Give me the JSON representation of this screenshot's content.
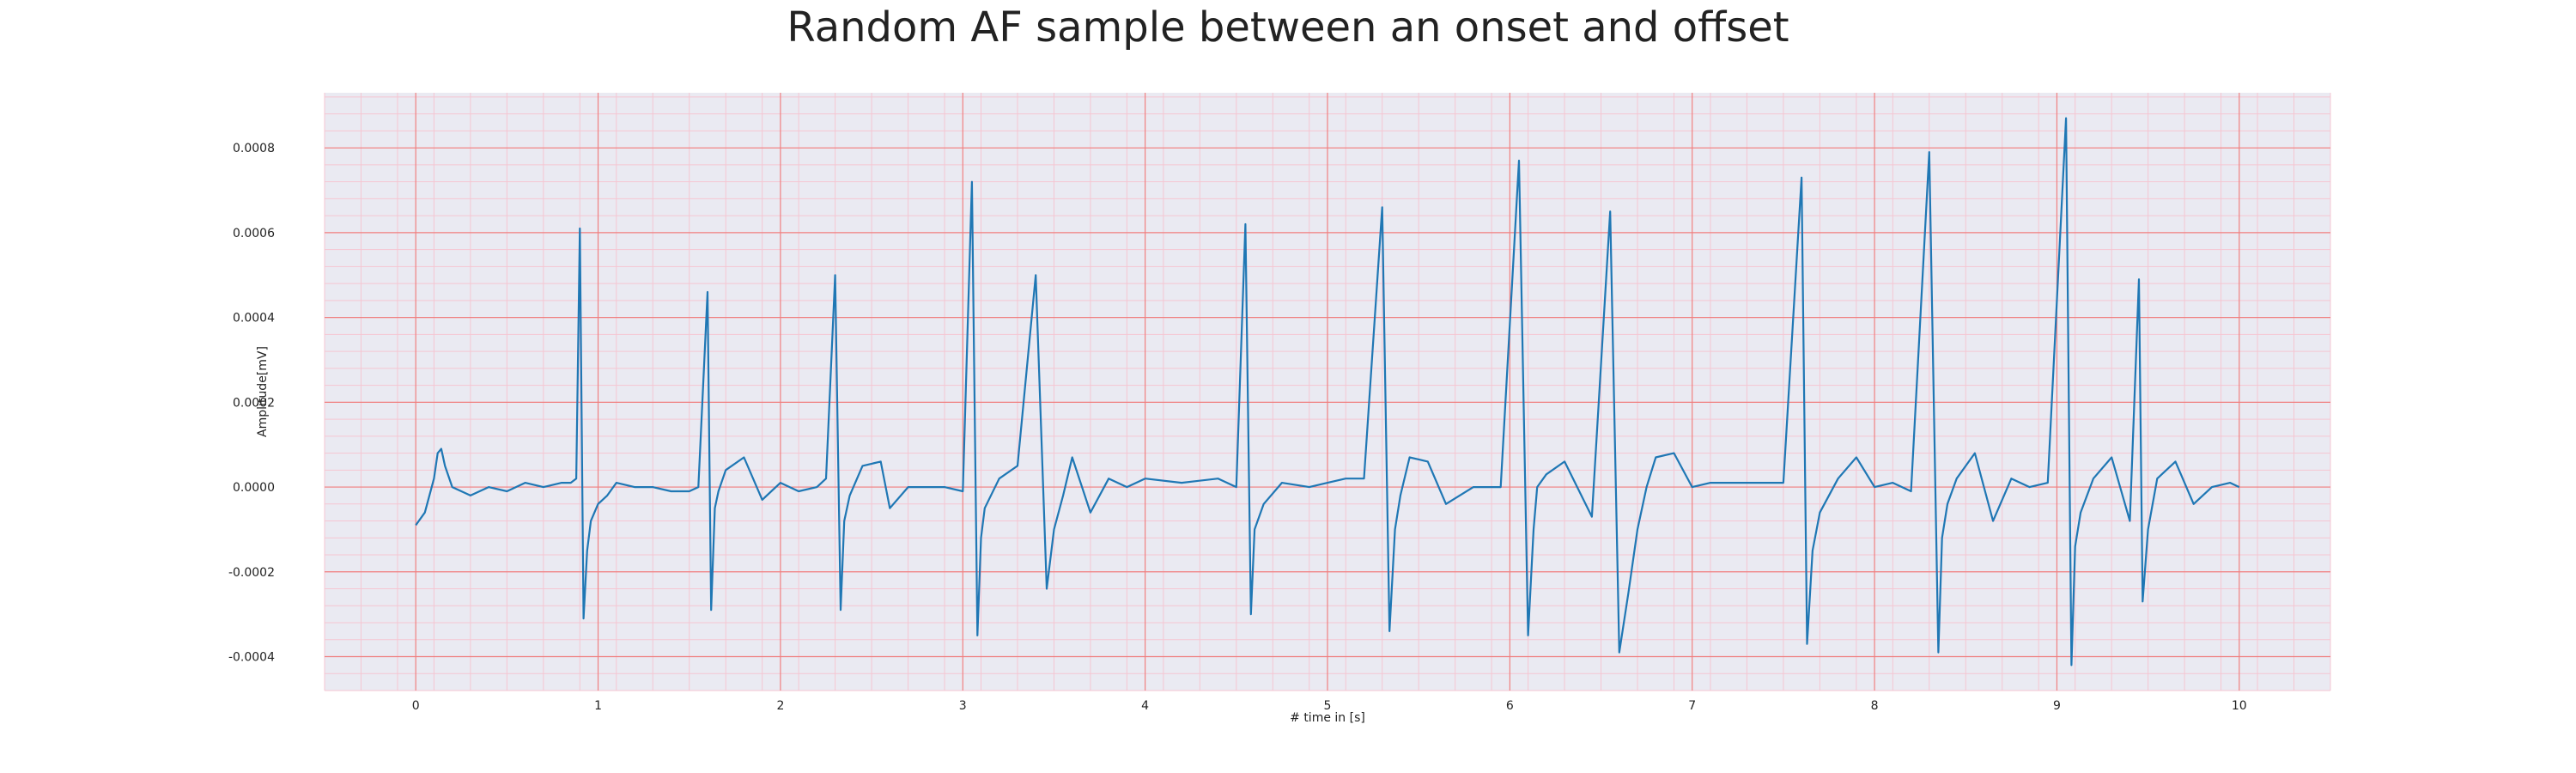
{
  "chart_data": {
    "type": "line",
    "title": "Random AF sample between an onset and offset",
    "xlabel": "# time in [s]",
    "ylabel": "Amplitude[mV]",
    "xlim": [
      -0.5,
      10.5
    ],
    "ylim": [
      -0.00048,
      0.00093
    ],
    "x_ticks": [
      0,
      1,
      2,
      3,
      4,
      5,
      6,
      7,
      8,
      9,
      10
    ],
    "x_tick_labels": [
      "0",
      "1",
      "2",
      "3",
      "4",
      "5",
      "6",
      "7",
      "8",
      "9",
      "10"
    ],
    "y_ticks": [
      -0.0004,
      -0.0002,
      0.0,
      0.0002,
      0.0004,
      0.0006,
      0.0008
    ],
    "y_tick_labels": [
      "-0.0004",
      "-0.0002",
      "0.0000",
      "0.0002",
      "0.0004",
      "0.0006",
      "0.0008"
    ],
    "grid": true,
    "minor_grid": true,
    "colors": {
      "background": "#eaeaf2",
      "major_grid": "#f08080",
      "minor_grid": "#f5c6d2",
      "line": "#1f77b4"
    },
    "series": [
      {
        "values_description_free": true,
        "x": [
          0.0,
          0.05,
          0.1,
          0.12,
          0.14,
          0.16,
          0.2,
          0.25,
          0.3,
          0.4,
          0.5,
          0.6,
          0.7,
          0.8,
          0.85,
          0.88,
          0.9,
          0.92,
          0.94,
          0.96,
          1.0,
          1.05,
          1.1,
          1.2,
          1.3,
          1.4,
          1.5,
          1.55,
          1.6,
          1.62,
          1.64,
          1.66,
          1.7,
          1.8,
          1.9,
          2.0,
          2.1,
          2.2,
          2.25,
          2.3,
          2.33,
          2.35,
          2.38,
          2.45,
          2.55,
          2.6,
          2.7,
          2.8,
          2.9,
          3.0,
          3.05,
          3.08,
          3.1,
          3.12,
          3.2,
          3.3,
          3.4,
          3.46,
          3.5,
          3.55,
          3.6,
          3.7,
          3.8,
          3.9,
          4.0,
          4.2,
          4.4,
          4.5,
          4.55,
          4.58,
          4.6,
          4.65,
          4.75,
          4.9,
          5.0,
          5.1,
          5.2,
          5.3,
          5.34,
          5.37,
          5.4,
          5.45,
          5.55,
          5.65,
          5.8,
          5.95,
          6.05,
          6.1,
          6.13,
          6.15,
          6.2,
          6.3,
          6.45,
          6.55,
          6.6,
          6.65,
          6.7,
          6.75,
          6.8,
          6.9,
          7.0,
          7.1,
          7.3,
          7.5,
          7.6,
          7.63,
          7.66,
          7.7,
          7.8,
          7.9,
          8.0,
          8.1,
          8.2,
          8.3,
          8.35,
          8.37,
          8.4,
          8.45,
          8.55,
          8.65,
          8.75,
          8.85,
          8.95,
          9.05,
          9.08,
          9.1,
          9.13,
          9.2,
          9.3,
          9.4,
          9.45,
          9.47,
          9.5,
          9.55,
          9.65,
          9.75,
          9.85,
          9.95,
          10.0
        ],
        "y": [
          -9e-05,
          -6e-05,
          2e-05,
          8e-05,
          9e-05,
          5e-05,
          0.0,
          -1e-05,
          -2e-05,
          0.0,
          -1e-05,
          1e-05,
          0.0,
          1e-05,
          1e-05,
          2e-05,
          0.00061,
          -0.00031,
          -0.00015,
          -8e-05,
          -4e-05,
          -2e-05,
          1e-05,
          0.0,
          0.0,
          -1e-05,
          -1e-05,
          0.0,
          0.00046,
          -0.00029,
          -5e-05,
          -1e-05,
          4e-05,
          7e-05,
          -3e-05,
          1e-05,
          -1e-05,
          0.0,
          2e-05,
          0.0005,
          -0.00029,
          -8e-05,
          -2e-05,
          5e-05,
          6e-05,
          -5e-05,
          0.0,
          0.0,
          0.0,
          -1e-05,
          0.00072,
          -0.00035,
          -0.00012,
          -5e-05,
          2e-05,
          5e-05,
          0.0005,
          -0.00024,
          -0.0001,
          -2e-05,
          7e-05,
          -6e-05,
          2e-05,
          0.0,
          2e-05,
          1e-05,
          2e-05,
          0.0,
          0.00062,
          -0.0003,
          -0.0001,
          -4e-05,
          1e-05,
          0.0,
          1e-05,
          2e-05,
          2e-05,
          0.00066,
          -0.00034,
          -0.0001,
          -2e-05,
          7e-05,
          6e-05,
          -4e-05,
          0.0,
          0.0,
          0.00077,
          -0.00035,
          -0.0001,
          0.0,
          3e-05,
          6e-05,
          -7e-05,
          0.00065,
          -0.00039,
          -0.00025,
          -0.0001,
          0.0,
          7e-05,
          8e-05,
          0.0,
          1e-05,
          1e-05,
          1e-05,
          0.00073,
          -0.00037,
          -0.00015,
          -6e-05,
          2e-05,
          7e-05,
          0.0,
          1e-05,
          -1e-05,
          0.00079,
          -0.00039,
          -0.00012,
          -4e-05,
          2e-05,
          8e-05,
          -8e-05,
          2e-05,
          0.0,
          1e-05,
          0.00087,
          -0.00042,
          -0.00014,
          -6e-05,
          2e-05,
          7e-05,
          -8e-05,
          0.00049,
          -0.00027,
          -0.0001,
          2e-05,
          6e-05,
          -4e-05,
          0.0,
          1e-05,
          0.0
        ]
      }
    ]
  }
}
